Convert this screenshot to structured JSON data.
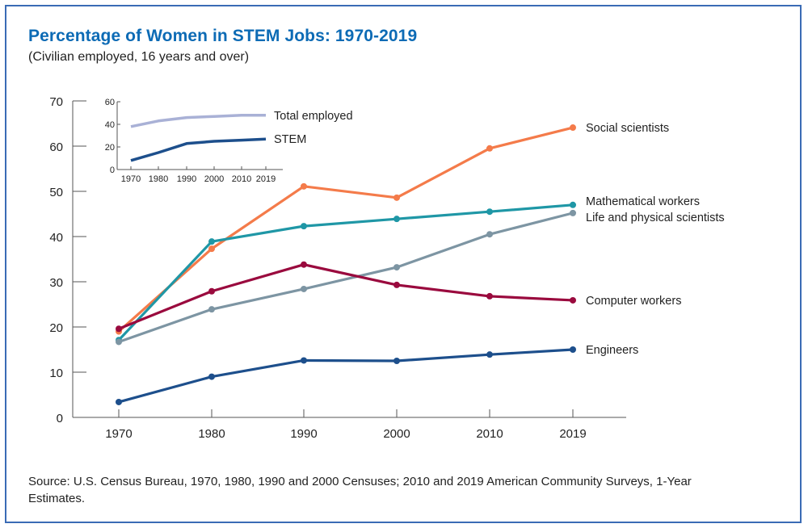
{
  "title": "Percentage of Women in STEM Jobs: 1970-2019",
  "subtitle": "(Civilian employed, 16 years and over)",
  "source": "Source: U.S. Census Bureau, 1970, 1980, 1990 and 2000 Censuses; 2010 and 2019 American Community Surveys, 1-Year Estimates.",
  "colors": {
    "title": "#0d6bb5",
    "frame": "#3a6bb5",
    "axis": "#555555"
  },
  "chart_data": [
    {
      "type": "line",
      "title": "Percentage of Women in STEM Jobs: 1970-2019",
      "xlabel": "",
      "ylabel": "",
      "x": [
        "1970",
        "1980",
        "1990",
        "2000",
        "2010",
        "2019"
      ],
      "ylim": [
        0,
        70
      ],
      "yticks": [
        0,
        10,
        20,
        30,
        40,
        50,
        60,
        70
      ],
      "grid": false,
      "legend": "direct-labels-right",
      "series": [
        {
          "name": "Social scientists",
          "color": "#f47b4a",
          "values": [
            19.0,
            37.3,
            51.1,
            48.6,
            59.5,
            64.1
          ]
        },
        {
          "name": "Mathematical workers",
          "color": "#1f97a6",
          "values": [
            17.1,
            38.9,
            42.3,
            43.9,
            45.5,
            47.0
          ]
        },
        {
          "name": "Life and physical scientists",
          "color": "#7d95a3",
          "values": [
            16.7,
            23.9,
            28.4,
            33.2,
            40.5,
            45.2
          ]
        },
        {
          "name": "Computer workers",
          "color": "#9a0a3e",
          "values": [
            19.6,
            27.9,
            33.8,
            29.3,
            26.8,
            25.9
          ]
        },
        {
          "name": "Engineers",
          "color": "#1d4f8c",
          "values": [
            3.4,
            9.0,
            12.6,
            12.5,
            13.9,
            15.0
          ]
        }
      ]
    },
    {
      "type": "line",
      "title": "Inset",
      "x": [
        "1970",
        "1980",
        "1990",
        "2000",
        "2010",
        "2019"
      ],
      "ylim": [
        0,
        60
      ],
      "yticks": [
        0,
        20,
        40,
        60
      ],
      "grid": false,
      "legend": "direct-labels-right",
      "series": [
        {
          "name": "Total employed",
          "color": "#a9b1d6",
          "values": [
            38,
            43,
            46,
            47,
            48,
            48
          ]
        },
        {
          "name": "STEM",
          "color": "#1d4f8c",
          "values": [
            8,
            15,
            23,
            25,
            26,
            27
          ]
        }
      ]
    }
  ]
}
